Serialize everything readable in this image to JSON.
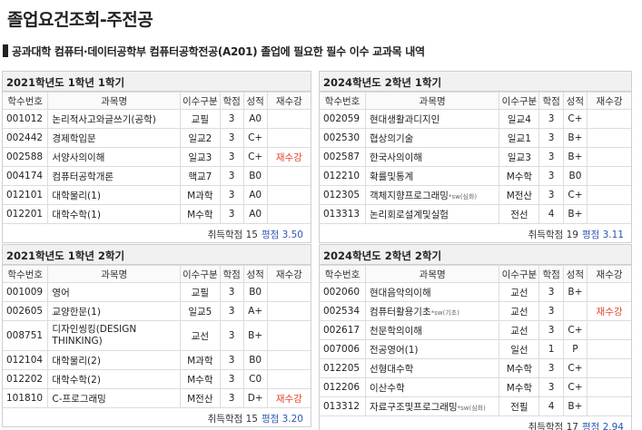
{
  "page": {
    "title": "졸업요건조회-주전공",
    "subtitle": "공과대학 컴퓨터·데이터공학부 컴퓨터공학전공(A201) 졸업에 필요한 필수 이수 교과목 내역"
  },
  "headers": {
    "code": "학수번호",
    "name": "과목명",
    "type": "이수구분",
    "credit": "학점",
    "grade": "성적",
    "retake": "재수강"
  },
  "footer_labels": {
    "credits": "취득학점",
    "gpa": "평점"
  },
  "colors": {
    "retake": "#e0452c",
    "gpa": "#2f56b0",
    "header_bg": "#f1f1f1"
  },
  "terms": [
    {
      "title": "2021학년도 1학년 1학기",
      "courses": [
        {
          "code": "001012",
          "name": "논리적사고와글쓰기(공학)",
          "sw": "",
          "type": "교필",
          "credit": "3",
          "grade": "A0",
          "retake": ""
        },
        {
          "code": "002442",
          "name": "경제학입문",
          "sw": "",
          "type": "일교2",
          "credit": "3",
          "grade": "C+",
          "retake": ""
        },
        {
          "code": "002588",
          "name": "서양사의이해",
          "sw": "",
          "type": "일교3",
          "credit": "3",
          "grade": "C+",
          "retake": "재수강"
        },
        {
          "code": "004174",
          "name": "컴퓨터공학개론",
          "sw": "",
          "type": "핵교7",
          "credit": "3",
          "grade": "B0",
          "retake": ""
        },
        {
          "code": "012101",
          "name": "대학물리(1)",
          "sw": "",
          "type": "M과학",
          "credit": "3",
          "grade": "A0",
          "retake": ""
        },
        {
          "code": "012201",
          "name": "대학수학(1)",
          "sw": "",
          "type": "M수학",
          "credit": "3",
          "grade": "A0",
          "retake": ""
        }
      ],
      "credits": "15",
      "gpa": "3.50"
    },
    {
      "title": "2024학년도 2학년 1학기",
      "courses": [
        {
          "code": "002059",
          "name": "현대생활과디지인",
          "sw": "",
          "type": "일교4",
          "credit": "3",
          "grade": "C+",
          "retake": ""
        },
        {
          "code": "002530",
          "name": "협상의기술",
          "sw": "",
          "type": "일교1",
          "credit": "3",
          "grade": "B+",
          "retake": ""
        },
        {
          "code": "002587",
          "name": "한국사의이해",
          "sw": "",
          "type": "일교3",
          "credit": "3",
          "grade": "B+",
          "retake": ""
        },
        {
          "code": "012210",
          "name": "확률및통계",
          "sw": "",
          "type": "M수학",
          "credit": "3",
          "grade": "B0",
          "retake": ""
        },
        {
          "code": "012305",
          "name": "객체지향프로그래밍",
          "sw": "*sw(심화)",
          "type": "M전산",
          "credit": "3",
          "grade": "C+",
          "retake": ""
        },
        {
          "code": "013313",
          "name": "논리회로설계및실험",
          "sw": "",
          "type": "전선",
          "credit": "4",
          "grade": "B+",
          "retake": ""
        }
      ],
      "credits": "19",
      "gpa": "3.11"
    },
    {
      "title": "2021학년도 1학년 2학기",
      "courses": [
        {
          "code": "001009",
          "name": "영어",
          "sw": "",
          "type": "교필",
          "credit": "3",
          "grade": "B0",
          "retake": ""
        },
        {
          "code": "002605",
          "name": "교양한문(1)",
          "sw": "",
          "type": "일교5",
          "credit": "3",
          "grade": "A+",
          "retake": ""
        },
        {
          "code": "008751",
          "name": "디자인씽킹(DESIGN THINKING)",
          "sw": "",
          "type": "교선",
          "credit": "3",
          "grade": "B+",
          "retake": "",
          "wrap": true
        },
        {
          "code": "012104",
          "name": "대학물리(2)",
          "sw": "",
          "type": "M과학",
          "credit": "3",
          "grade": "B0",
          "retake": ""
        },
        {
          "code": "012202",
          "name": "대학수학(2)",
          "sw": "",
          "type": "M수학",
          "credit": "3",
          "grade": "C0",
          "retake": ""
        },
        {
          "code": "101810",
          "name": "C-프로그래밍",
          "sw": "",
          "type": "M전산",
          "credit": "3",
          "grade": "D+",
          "retake": "재수강"
        }
      ],
      "credits": "15",
      "gpa": "3.20"
    },
    {
      "title": "2024학년도 2학년 2학기",
      "courses": [
        {
          "code": "002060",
          "name": "현대음악의이해",
          "sw": "",
          "type": "교선",
          "credit": "3",
          "grade": "B+",
          "retake": ""
        },
        {
          "code": "002534",
          "name": "컴퓨터활용기초",
          "sw": "*sw(기초)",
          "type": "교선",
          "credit": "3",
          "grade": "",
          "retake": "재수강"
        },
        {
          "code": "002617",
          "name": "천문학의이해",
          "sw": "",
          "type": "교선",
          "credit": "3",
          "grade": "C+",
          "retake": ""
        },
        {
          "code": "007006",
          "name": "전공영어(1)",
          "sw": "",
          "type": "일선",
          "credit": "1",
          "grade": "P",
          "retake": ""
        },
        {
          "code": "012205",
          "name": "선형대수학",
          "sw": "",
          "type": "M수학",
          "credit": "3",
          "grade": "C+",
          "retake": ""
        },
        {
          "code": "012206",
          "name": "이산수학",
          "sw": "",
          "type": "M수학",
          "credit": "3",
          "grade": "C+",
          "retake": ""
        },
        {
          "code": "013312",
          "name": "자료구조및프로그래밍",
          "sw": "*sw(심화)",
          "type": "전필",
          "credit": "4",
          "grade": "B+",
          "retake": ""
        }
      ],
      "credits": "17",
      "gpa": "2.94"
    }
  ]
}
